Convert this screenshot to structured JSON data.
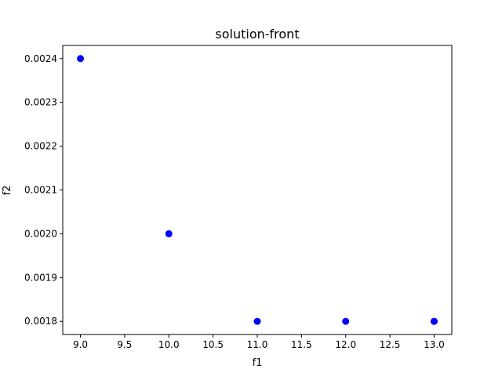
{
  "chart_data": {
    "type": "scatter",
    "title": "solution-front",
    "xlabel": "f1",
    "ylabel": "f2",
    "xlim": [
      8.8,
      13.2
    ],
    "ylim": [
      0.00177,
      0.00243
    ],
    "xticks": [
      9.0,
      9.5,
      10.0,
      10.5,
      11.0,
      11.5,
      12.0,
      12.5,
      13.0
    ],
    "xtick_labels": [
      "9.0",
      "9.5",
      "10.0",
      "10.5",
      "11.0",
      "11.5",
      "12.0",
      "12.5",
      "13.0"
    ],
    "yticks": [
      0.0018,
      0.0019,
      0.002,
      0.0021,
      0.0022,
      0.0023,
      0.0024
    ],
    "ytick_labels": [
      "0.0018",
      "0.0019",
      "0.0020",
      "0.0021",
      "0.0022",
      "0.0023",
      "0.0024"
    ],
    "grid": false,
    "marker_color": "#0000ff",
    "points": [
      {
        "x": 9.0,
        "y": 0.0024
      },
      {
        "x": 10.0,
        "y": 0.002
      },
      {
        "x": 11.0,
        "y": 0.0018
      },
      {
        "x": 12.0,
        "y": 0.0018
      },
      {
        "x": 13.0,
        "y": 0.0018
      },
      {
        "x": 13.0,
        "y": 0.0018
      }
    ]
  }
}
